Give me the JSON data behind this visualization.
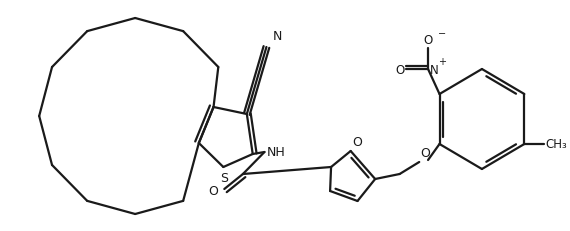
{
  "bg_color": "#ffffff",
  "line_color": "#1a1a1a",
  "line_width": 1.6,
  "fig_width": 5.7,
  "fig_height": 2.32,
  "dpi": 100,
  "xlim": [
    0,
    570
  ],
  "ylim": [
    0,
    232
  ]
}
